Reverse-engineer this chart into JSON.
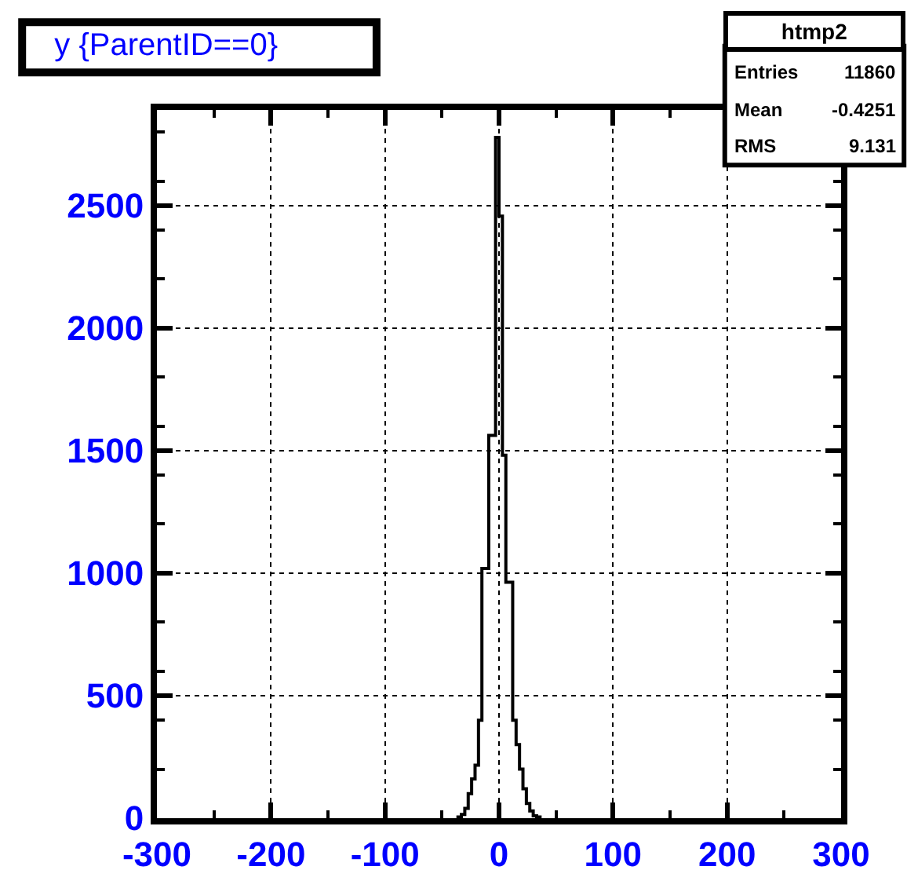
{
  "chart_data": {
    "type": "histogram",
    "title": "y {ParentID==0}",
    "bins": [
      -36,
      -33,
      -30,
      -27,
      -24,
      -21,
      -18,
      -15,
      -12,
      -9,
      -6,
      -3,
      0,
      3,
      6,
      9,
      12,
      15,
      18,
      21,
      24,
      27,
      30,
      33,
      36
    ],
    "values": [
      5,
      15,
      40,
      100,
      160,
      216,
      400,
      1019,
      1019,
      1562,
      1562,
      2778,
      2457,
      1481,
      963,
      963,
      400,
      300,
      200,
      120,
      60,
      30,
      10,
      5
    ],
    "color": "#000000",
    "xlim": [
      -300,
      300
    ],
    "xticks": [
      -300,
      -200,
      -100,
      0,
      100,
      200,
      300
    ],
    "ylim": [
      0,
      2890
    ],
    "yticks": [
      0,
      500,
      1000,
      1500,
      2000,
      2500
    ],
    "grid": true,
    "annotations": [
      "htmp2",
      "Entries 11860",
      "Mean -0.4251",
      "RMS 9.131"
    ]
  }
}
